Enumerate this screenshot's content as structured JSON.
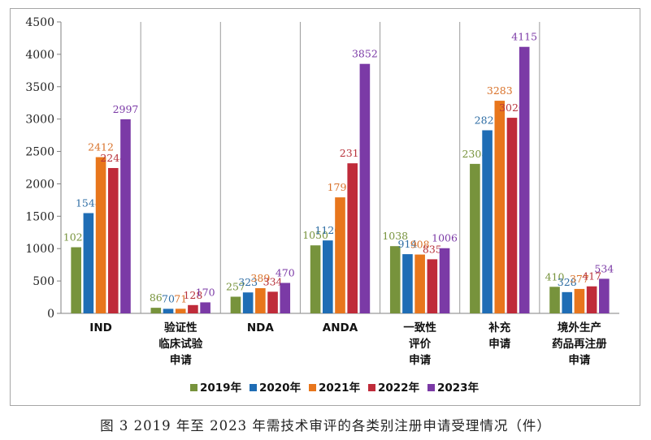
{
  "caption": "图 3   2019 年至 2023 年需技术审评的各类别注册申请受理情况（件）",
  "chart_data": {
    "type": "bar",
    "title": "",
    "xlabel": "",
    "ylabel": "",
    "ylim": [
      0,
      4500
    ],
    "yticks": [
      0,
      500,
      1000,
      1500,
      2000,
      2500,
      3000,
      3500,
      4000,
      4500
    ],
    "grid": false,
    "legend_position": "bottom",
    "categories": [
      [
        "IND"
      ],
      [
        "验证性",
        "临床试验",
        "申请"
      ],
      [
        "NDA"
      ],
      [
        "ANDA"
      ],
      [
        "一致性",
        "评价",
        "申请"
      ],
      [
        "补充",
        "申请"
      ],
      [
        "境外生产",
        "药品再注册",
        "申请"
      ]
    ],
    "series": [
      {
        "name": "2019年",
        "color": "#77933c",
        "label_color": "#77933c",
        "values": [
          1021,
          86,
          257,
          1050,
          1038,
          2308,
          410
        ]
      },
      {
        "name": "2020年",
        "color": "#1f6db5",
        "label_color": "#2e6da4",
        "values": [
          1548,
          70,
          323,
          1126,
          914,
          2827,
          328
        ]
      },
      {
        "name": "2021年",
        "color": "#e8761c",
        "label_color": "#d9722a",
        "values": [
          2412,
          71,
          389,
          1791,
          908,
          3283,
          377
        ]
      },
      {
        "name": "2022年",
        "color": "#bf2b3a",
        "label_color": "#b8333c",
        "values": [
          2244,
          128,
          334,
          2317,
          835,
          3020,
          417
        ]
      },
      {
        "name": "2023年",
        "color": "#7b3aa6",
        "label_color": "#7b3aa6",
        "values": [
          2997,
          170,
          470,
          3852,
          1006,
          4115,
          534
        ]
      }
    ]
  }
}
